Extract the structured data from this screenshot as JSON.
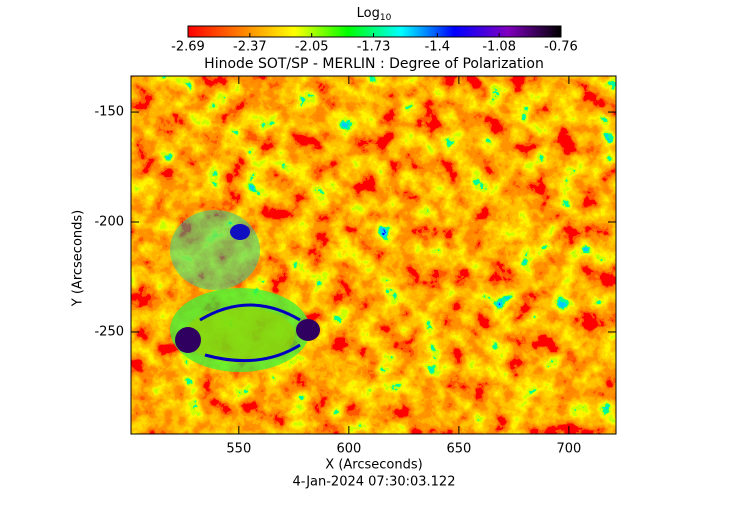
{
  "chart_data": {
    "type": "image",
    "title": "Hinode SOT/SP - MERLIN : Degree of Polarization",
    "x_label": "X (Arcseconds)",
    "y_label": "Y (Arcseconds)",
    "footer": "4-Jan-2024 07:30:03.122",
    "colorbar_label": "Log",
    "colorbar_label_sub": "10",
    "colorbar_lim": [
      -2.69,
      -0.76
    ],
    "colorbar_ticks": [
      -2.69,
      -2.37,
      -2.05,
      -1.73,
      -1.4,
      -1.08,
      -0.76
    ],
    "colormap": [
      "#ff0000",
      "#ff8000",
      "#ffff00",
      "#00ff00",
      "#00ffff",
      "#0000ff",
      "#8000c0",
      "#000000"
    ],
    "xlim": [
      501,
      721.4
    ],
    "xticks": [
      550,
      600,
      650,
      700
    ],
    "ylim": [
      -296.4,
      -133.6
    ],
    "yticks": [
      -150,
      -200,
      -250
    ]
  }
}
